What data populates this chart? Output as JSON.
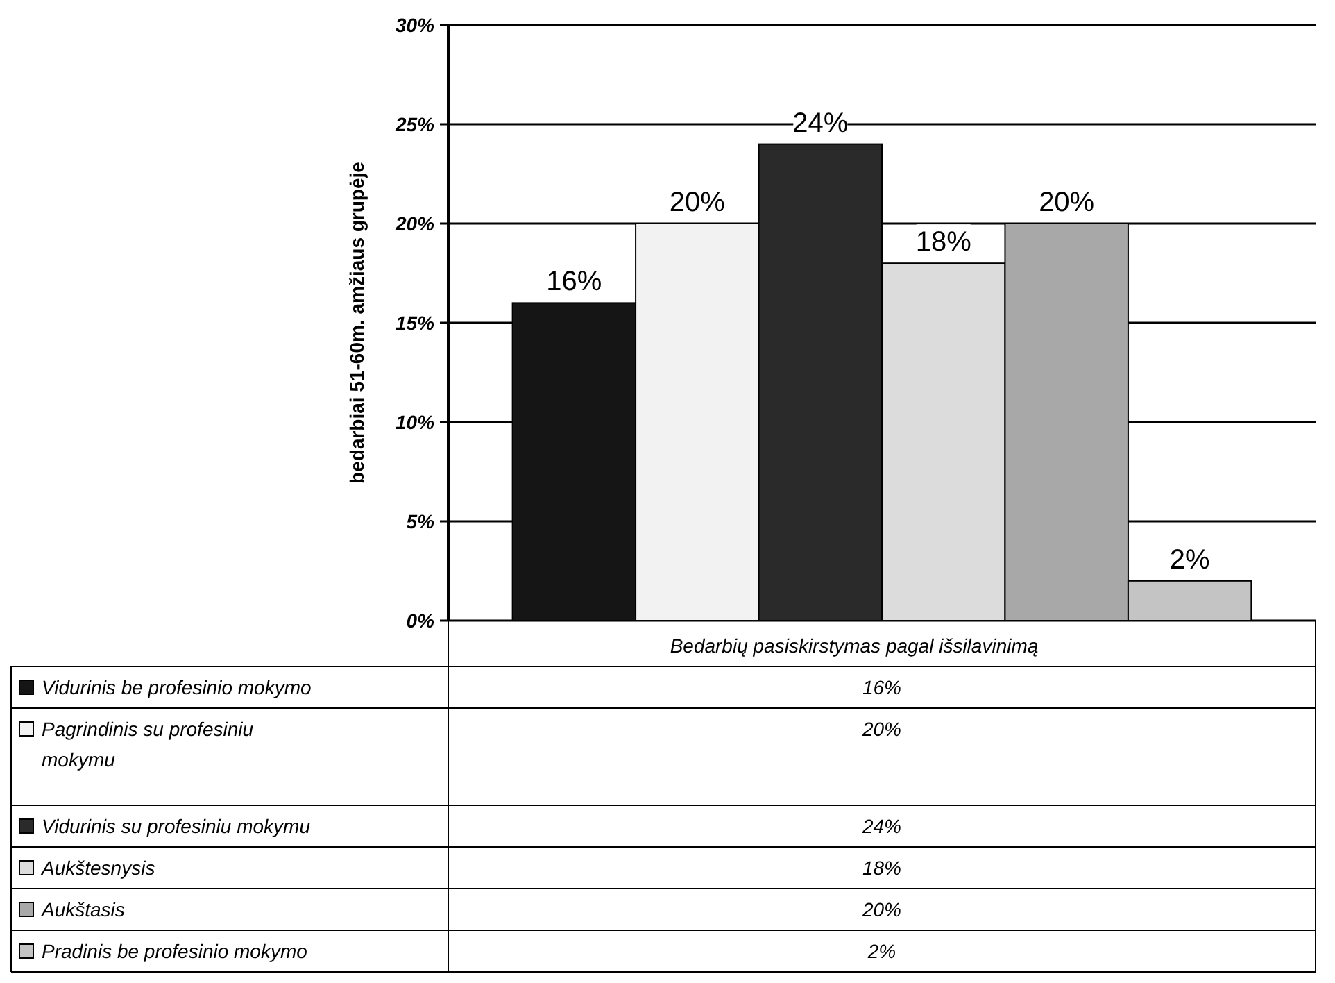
{
  "chart_data": {
    "type": "bar",
    "ylabel": "bedarbiai 51-60m. amžiaus grupėje",
    "categories": [
      "Bedarbių pasiskirstymas pagal išsilavinimą"
    ],
    "ylim": [
      0,
      30
    ],
    "yticks": [
      {
        "value": 0,
        "label": "0%"
      },
      {
        "value": 5,
        "label": "5%"
      },
      {
        "value": 10,
        "label": "10%"
      },
      {
        "value": 15,
        "label": "15%"
      },
      {
        "value": 20,
        "label": "20%"
      },
      {
        "value": 25,
        "label": "25%"
      },
      {
        "value": 30,
        "label": "30%"
      }
    ],
    "grid": "y",
    "legend": "bottom",
    "series": [
      {
        "name": "Vidurinis be profesinio mokymo",
        "color": "#151515",
        "values": [
          16
        ],
        "value_labels": [
          "16%"
        ]
      },
      {
        "name": "Pagrindinis su profesiniu mokymu",
        "color": "#f2f2f2",
        "values": [
          20
        ],
        "value_labels": [
          "20%"
        ]
      },
      {
        "name": "Vidurinis su profesiniu mokymu",
        "color": "#2a2a2a",
        "values": [
          24
        ],
        "value_labels": [
          "24%"
        ]
      },
      {
        "name": "Aukštesnysis",
        "color": "#dcdcdc",
        "values": [
          18
        ],
        "value_labels": [
          "18%"
        ]
      },
      {
        "name": "Aukštasis",
        "color": "#a8a8a8",
        "values": [
          20
        ],
        "value_labels": [
          "20%"
        ]
      },
      {
        "name": "Pradinis be profesinio mokymo",
        "color": "#c4c4c4",
        "values": [
          2
        ],
        "value_labels": [
          "2%"
        ]
      }
    ]
  }
}
